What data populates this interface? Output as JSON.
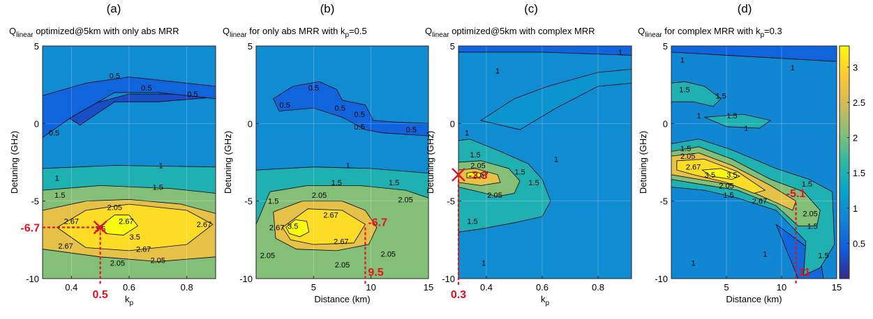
{
  "figure": {
    "colorbar": {
      "min": 0,
      "max": 3.3,
      "ticks": [
        "0.5",
        "1",
        "1.5",
        "2",
        "2.5",
        "3"
      ],
      "colormap": "parula"
    },
    "colors": {
      "annotation": "#e8101e",
      "contour_line": "#000000"
    }
  },
  "chart_data": [
    {
      "type": "heatmap",
      "panel_letter": "(a)",
      "title": {
        "q": "Q",
        "sub": "linear",
        "rest": " optimized@5km with only abs MRR"
      },
      "xlabel": {
        "main": "k",
        "sub": "p"
      },
      "ylabel": "Detuning (GHz)",
      "xlim": [
        0.3,
        0.9
      ],
      "ylim": [
        -10,
        5
      ],
      "xticks": [
        0.4,
        0.6,
        0.8
      ],
      "xtick_labels": [
        "0.4",
        "0.6",
        "0.8"
      ],
      "yticks": [
        -10,
        -5,
        0,
        5
      ],
      "ytick_labels": [
        "-10",
        "-5",
        "0",
        "5"
      ],
      "contour_levels": [
        0.5,
        1,
        1.5,
        2.05,
        2.67,
        3.5
      ],
      "contour_labels": [
        {
          "text": "0.5",
          "x": 0.55,
          "y": 3.1
        },
        {
          "text": "0.5",
          "x": 0.66,
          "y": 2.3
        },
        {
          "text": "0.5",
          "x": 0.82,
          "y": 1.9
        },
        {
          "text": "0.5",
          "x": 0.34,
          "y": -0.6
        },
        {
          "text": "1",
          "x": 0.71,
          "y": -2.7
        },
        {
          "text": "1",
          "x": 0.35,
          "y": -3.5
        },
        {
          "text": "1.5",
          "x": 0.36,
          "y": -4.6
        },
        {
          "text": "1.5",
          "x": 0.7,
          "y": -4.1
        },
        {
          "text": "2.05",
          "x": 0.55,
          "y": -5.4
        },
        {
          "text": "2.67",
          "x": 0.4,
          "y": -6.3
        },
        {
          "text": "2.67",
          "x": 0.59,
          "y": -6.3
        },
        {
          "text": "2.67",
          "x": 0.86,
          "y": -6.5
        },
        {
          "text": "3.5",
          "x": 0.5,
          "y": -6.8
        },
        {
          "text": "3.5",
          "x": 0.62,
          "y": -7.3
        },
        {
          "text": "2.67",
          "x": 0.38,
          "y": -7.9
        },
        {
          "text": "2.67",
          "x": 0.65,
          "y": -8.1
        },
        {
          "text": "2.05",
          "x": 0.56,
          "y": -9.0
        },
        {
          "text": "2.05",
          "x": 0.7,
          "y": -8.8
        }
      ],
      "optimum": {
        "x": 0.5,
        "y": -6.7,
        "x_label": "0.5",
        "y_label": "-6.7"
      }
    },
    {
      "type": "heatmap",
      "panel_letter": "(b)",
      "title": {
        "q": "Q",
        "sub": "linear",
        "rest": " for only abs MRR with k",
        "sub2": "p",
        "rest2": "=0.5"
      },
      "xlabel": {
        "main": "Distance (km)"
      },
      "ylabel": "Detuning (GHz)",
      "xlim": [
        0,
        15
      ],
      "ylim": [
        -10,
        5
      ],
      "xticks": [
        5,
        10,
        15
      ],
      "xtick_labels": [
        "5",
        "10",
        "15"
      ],
      "yticks": [
        -10,
        -5,
        0,
        5
      ],
      "ytick_labels": [
        "-10",
        "-5",
        "0",
        "5"
      ],
      "contour_levels": [
        0.5,
        1,
        1.5,
        2.05,
        2.67,
        3.5
      ],
      "contour_labels": [
        {
          "text": "0.5",
          "x": 5.0,
          "y": 2.3
        },
        {
          "text": "0.5",
          "x": 2.5,
          "y": 1.2
        },
        {
          "text": "0.5",
          "x": 7.3,
          "y": 1.0
        },
        {
          "text": "0.5",
          "x": 9.0,
          "y": 0.6
        },
        {
          "text": "0.5",
          "x": 9.0,
          "y": -0.2
        },
        {
          "text": "0.5",
          "x": 13.5,
          "y": -0.4
        },
        {
          "text": "1",
          "x": 8.0,
          "y": -2.7
        },
        {
          "text": "1.5",
          "x": 7.0,
          "y": -3.8
        },
        {
          "text": "1.5",
          "x": 12.0,
          "y": -3.8
        },
        {
          "text": "1.5",
          "x": 1.5,
          "y": -5.0
        },
        {
          "text": "2.05",
          "x": 5.5,
          "y": -4.6
        },
        {
          "text": "2.05",
          "x": 13.0,
          "y": -4.9
        },
        {
          "text": "2.67",
          "x": 6.5,
          "y": -5.9
        },
        {
          "text": "2.67",
          "x": 1.8,
          "y": -6.7
        },
        {
          "text": "3.5",
          "x": 3.2,
          "y": -6.6
        },
        {
          "text": "2.67",
          "x": 7.4,
          "y": -7.6
        },
        {
          "text": "2.05",
          "x": 1.0,
          "y": -8.5
        },
        {
          "text": "2.05",
          "x": 7.5,
          "y": -9.1
        },
        {
          "text": "2.05",
          "x": 11.5,
          "y": -8.4
        }
      ],
      "optimum": {
        "x": 9.5,
        "y": -6.7,
        "x_label": "9.5",
        "y_label": "-6.7"
      }
    },
    {
      "type": "heatmap",
      "panel_letter": "(c)",
      "title": {
        "q": "Q",
        "sub": "linear",
        "rest": " optimized@5km with complex MRR"
      },
      "xlabel": {
        "main": "k",
        "sub": "p"
      },
      "ylabel": "Detuning (GHz)",
      "xlim": [
        0.3,
        0.92
      ],
      "ylim": [
        -10,
        5
      ],
      "xticks": [
        0.4,
        0.6,
        0.8
      ],
      "xtick_labels": [
        "0.4",
        "0.6",
        "0.8"
      ],
      "yticks": [
        -10,
        -5,
        0,
        5
      ],
      "ytick_labels": [
        "-10",
        "-5",
        "0",
        "5"
      ],
      "contour_levels": [
        1,
        1.5,
        2.05,
        2.67,
        3.5
      ],
      "contour_labels": [
        {
          "text": "1",
          "x": 0.44,
          "y": 3.4
        },
        {
          "text": "1",
          "x": 0.88,
          "y": 4.6
        },
        {
          "text": "1",
          "x": 0.33,
          "y": -0.6
        },
        {
          "text": "1",
          "x": 0.65,
          "y": -2.3
        },
        {
          "text": "1.5",
          "x": 0.36,
          "y": -2.0
        },
        {
          "text": "2.05",
          "x": 0.37,
          "y": -2.7
        },
        {
          "text": "2.67",
          "x": 0.38,
          "y": -3.3
        },
        {
          "text": "1.5",
          "x": 0.52,
          "y": -3.1
        },
        {
          "text": "2.05",
          "x": 0.43,
          "y": -4.6
        },
        {
          "text": "1.5",
          "x": 0.57,
          "y": -3.8
        },
        {
          "text": "1.5",
          "x": 0.35,
          "y": -6.3
        },
        {
          "text": "1",
          "x": 0.39,
          "y": -9.0
        }
      ],
      "optimum": {
        "x": 0.3,
        "y": -3.3,
        "x_label": "0.3",
        "y_label": "-3.3"
      }
    },
    {
      "type": "heatmap",
      "panel_letter": "(d)",
      "title": {
        "q": "Q",
        "sub": "linear",
        "rest": " for complex MRR with k",
        "sub2": "p",
        "rest2": "=0.3"
      },
      "xlabel": {
        "main": "Distance (km)"
      },
      "ylabel": "Detuning (GHz)",
      "xlim": [
        0,
        15
      ],
      "ylim": [
        -10,
        5
      ],
      "xticks": [
        5,
        10,
        15
      ],
      "xtick_labels": [
        "5",
        "10",
        "15"
      ],
      "yticks": [
        -10,
        -5,
        0,
        5
      ],
      "ytick_labels": [
        "-10",
        "-5",
        "0",
        "5"
      ],
      "contour_levels": [
        1,
        1.5,
        2.05,
        2.67,
        3.5
      ],
      "contour_labels": [
        {
          "text": "1",
          "x": 1.0,
          "y": 4.1
        },
        {
          "text": "1",
          "x": 11.0,
          "y": 3.6
        },
        {
          "text": "1.5",
          "x": 1.2,
          "y": 2.2
        },
        {
          "text": "1.5",
          "x": 4.5,
          "y": 1.8
        },
        {
          "text": "1",
          "x": 2.5,
          "y": 0.5
        },
        {
          "text": "1.5",
          "x": 5.5,
          "y": 0.5
        },
        {
          "text": "1",
          "x": 6.8,
          "y": -0.3
        },
        {
          "text": "1.5",
          "x": 1.3,
          "y": -1.6
        },
        {
          "text": "2.05",
          "x": 1.5,
          "y": -2.1
        },
        {
          "text": "2.67",
          "x": 2.0,
          "y": -2.8
        },
        {
          "text": "3.5",
          "x": 3.5,
          "y": -3.3
        },
        {
          "text": "3.5",
          "x": 5.5,
          "y": -3.3
        },
        {
          "text": "2.05",
          "x": 5.0,
          "y": -4.0
        },
        {
          "text": "1.5",
          "x": 5.2,
          "y": -4.6
        },
        {
          "text": "2.67",
          "x": 8.0,
          "y": -5.0
        },
        {
          "text": "2.05",
          "x": 12.6,
          "y": -5.8
        },
        {
          "text": "1.5",
          "x": 12.3,
          "y": -3.9
        },
        {
          "text": "1.5",
          "x": 12.8,
          "y": -6.6
        },
        {
          "text": "1.5",
          "x": 13.8,
          "y": -8.5
        },
        {
          "text": "1",
          "x": 2.0,
          "y": -9.0
        },
        {
          "text": "1",
          "x": 8.5,
          "y": -8.4
        }
      ],
      "optimum": {
        "x": 11.3,
        "y": -5.1,
        "x_label": "11",
        "y_label": "-5.1"
      }
    }
  ]
}
